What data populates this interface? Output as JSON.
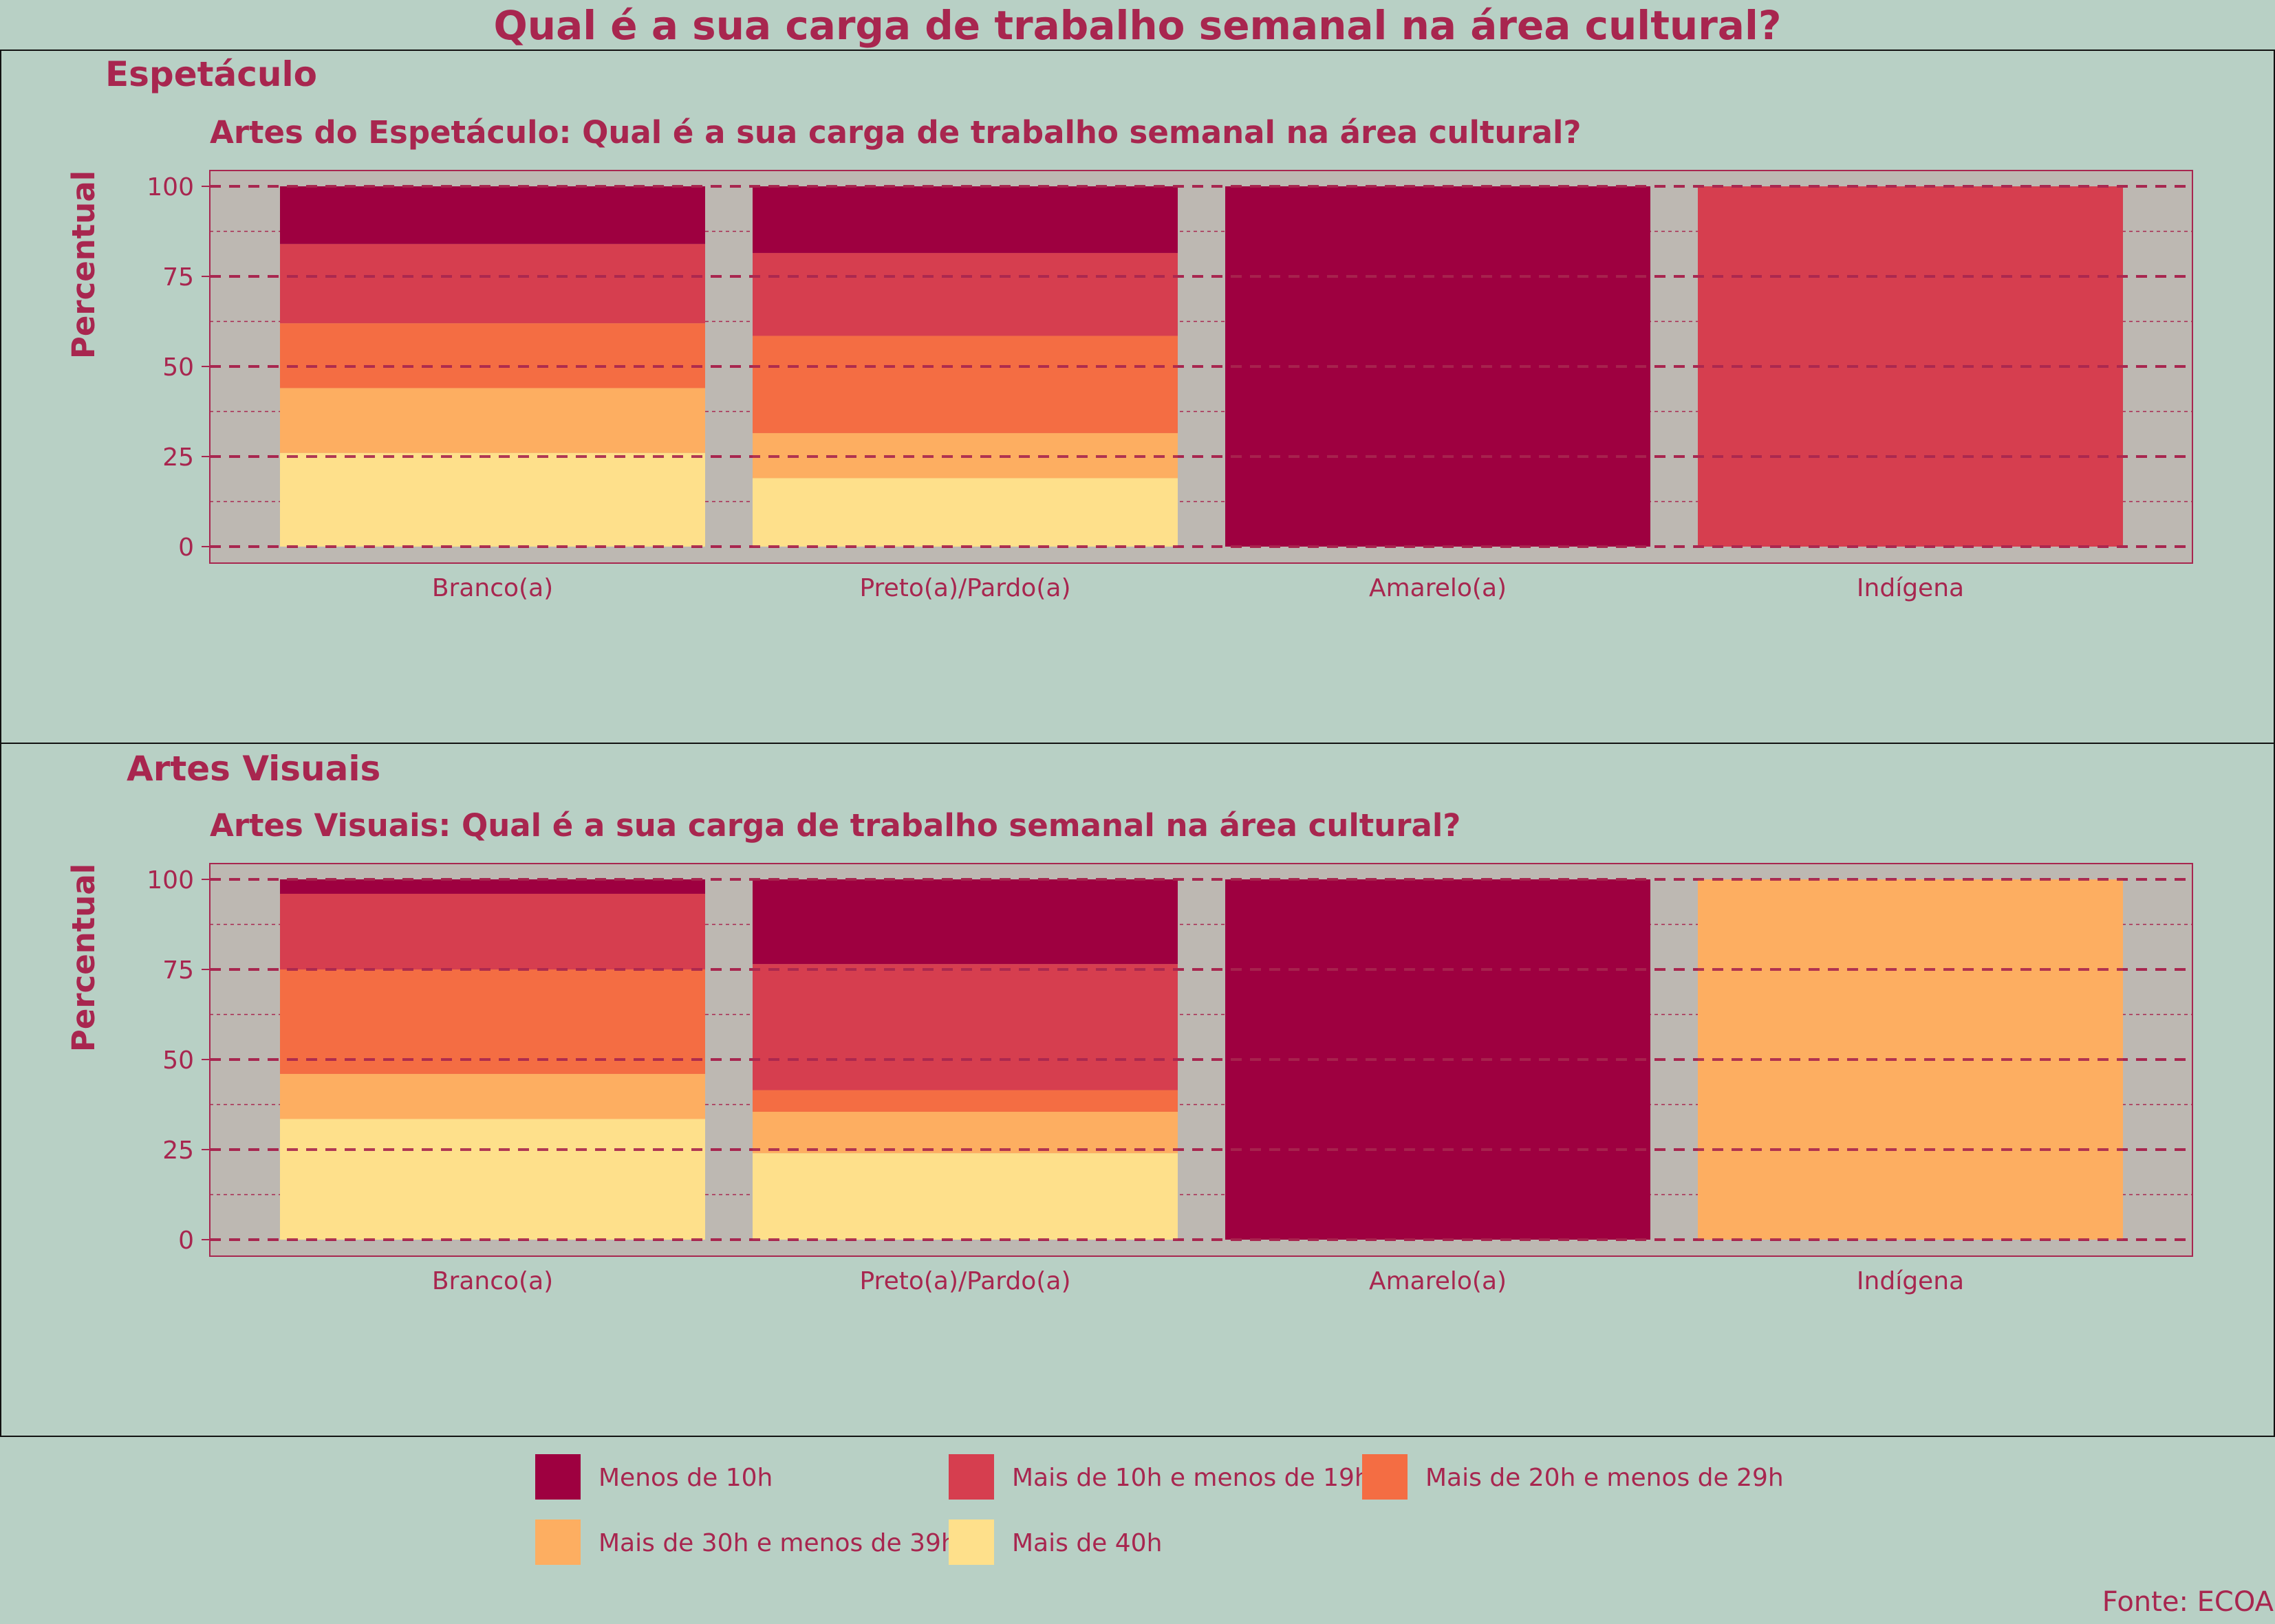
{
  "title": "Qual é a sua carga de trabalho semanal na área cultural?",
  "source": "Fonte: ECOA",
  "colors": {
    "Menos de 10h": "#9e0040",
    "Mais de 10h e menos de 19h": "#d63e4f",
    "Mais de 20h e menos de 29h": "#f46d43",
    "Mais de 30h e menos de 39h": "#fdae61",
    "Mais de 40h": "#fee08b",
    "plot_background": "#bdb8b2",
    "page_background": "#b8d0c5",
    "text": "#a8264f"
  },
  "legend": {
    "items": [
      "Menos de 10h",
      "Mais de 10h e menos de 19h",
      "Mais de 20h e menos de 29h",
      "Mais de 30h e menos de 39h",
      "Mais de 40h"
    ]
  },
  "chart_data": [
    {
      "type": "bar",
      "stacked": true,
      "panel_label": "Espetáculo",
      "title": "Artes do Espetáculo: Qual é a sua carga de trabalho semanal na área cultural?",
      "ylabel": "Percentual",
      "xlabel": "",
      "ylim": [
        0,
        100
      ],
      "yticks": [
        0,
        25,
        50,
        75,
        100
      ],
      "categories": [
        "Branco(a)",
        "Preto(a)/Pardo(a)",
        "Amarelo(a)",
        "Indígena"
      ],
      "series": [
        {
          "name": "Mais de 40h",
          "values": [
            26,
            19,
            0,
            0
          ]
        },
        {
          "name": "Mais de 30h e menos de 39h",
          "values": [
            18,
            12.5,
            0,
            0
          ]
        },
        {
          "name": "Mais de 20h e menos de 29h",
          "values": [
            18,
            27,
            0,
            0
          ]
        },
        {
          "name": "Mais de 10h e menos de 19h",
          "values": [
            22,
            23,
            0,
            100
          ]
        },
        {
          "name": "Menos de 10h",
          "values": [
            16,
            18.5,
            100,
            0
          ]
        }
      ]
    },
    {
      "type": "bar",
      "stacked": true,
      "panel_label": "Artes Visuais",
      "title": "Artes Visuais: Qual é a sua carga de trabalho semanal na área cultural?",
      "ylabel": "Percentual",
      "xlabel": "",
      "ylim": [
        0,
        100
      ],
      "yticks": [
        0,
        25,
        50,
        75,
        100
      ],
      "categories": [
        "Branco(a)",
        "Preto(a)/Pardo(a)",
        "Amarelo(a)",
        "Indígena"
      ],
      "series": [
        {
          "name": "Mais de 40h",
          "values": [
            33.5,
            24,
            0,
            0
          ]
        },
        {
          "name": "Mais de 30h e menos de 39h",
          "values": [
            12.5,
            11.5,
            0,
            100
          ]
        },
        {
          "name": "Mais de 20h e menos de 29h",
          "values": [
            29,
            6,
            0,
            0
          ]
        },
        {
          "name": "Mais de 10h e menos de 19h",
          "values": [
            21,
            35,
            0,
            0
          ]
        },
        {
          "name": "Menos de 10h",
          "values": [
            4,
            23.5,
            100,
            0
          ]
        }
      ]
    }
  ]
}
